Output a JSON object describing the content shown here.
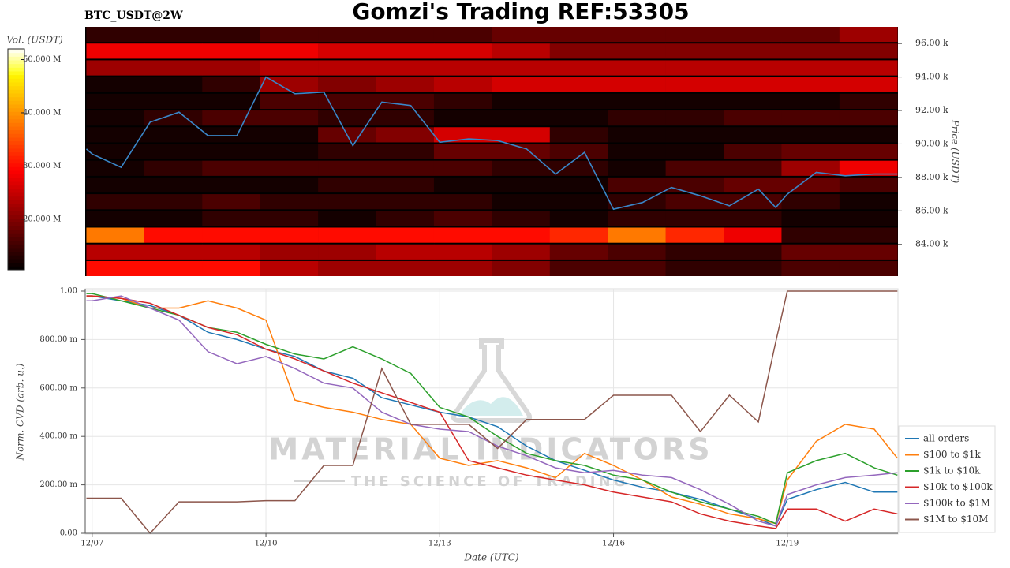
{
  "chart_data": [
    {
      "type": "heatmap",
      "title": "Gomzi's Trading REF:53305",
      "subtitle": "BTC_USDT@2W",
      "ylabel": "Price (USDT)",
      "xlim": [
        6.88,
        20.91
      ],
      "ylim": [
        82100,
        97000
      ],
      "yticks": [
        {
          "value": 84000,
          "label": "84.00 k"
        },
        {
          "value": 86000,
          "label": "86.00 k"
        },
        {
          "value": 88000,
          "label": "88.00 k"
        },
        {
          "value": 90000,
          "label": "90.00 k"
        },
        {
          "value": 92000,
          "label": "92.00 k"
        },
        {
          "value": 94000,
          "label": "94.00 k"
        },
        {
          "value": 96000,
          "label": "96.00 k"
        }
      ],
      "xbins": [
        6.9,
        7.9,
        8.9,
        9.9,
        10.9,
        11.9,
        12.9,
        13.9,
        14.9,
        15.9,
        16.9,
        17.9,
        18.9,
        19.9,
        20.9
      ],
      "ybins": [
        82000,
        83000,
        84000,
        85000,
        86000,
        87000,
        88000,
        89000,
        90000,
        91000,
        92000,
        93000,
        94000,
        95000,
        96000,
        97000
      ],
      "z": [
        [
          30000000,
          30000000,
          30000000,
          24000000,
          22000000,
          22000000,
          22000000,
          20000000,
          16000000,
          16000000,
          14000000,
          14000000,
          16000000,
          16000000
        ],
        [
          24000000,
          24000000,
          24000000,
          22000000,
          22000000,
          24000000,
          24000000,
          22000000,
          18000000,
          16000000,
          14000000,
          14000000,
          18000000,
          18000000
        ],
        [
          38000000,
          30000000,
          30000000,
          30000000,
          30000000,
          30000000,
          30000000,
          30000000,
          32000000,
          38000000,
          32000000,
          28000000,
          14000000,
          14000000
        ],
        [
          12000000,
          12000000,
          14000000,
          14000000,
          12000000,
          14000000,
          16000000,
          14000000,
          12000000,
          14000000,
          14000000,
          14000000,
          12000000,
          12000000
        ],
        [
          14000000,
          14000000,
          16000000,
          14000000,
          14000000,
          14000000,
          14000000,
          12000000,
          12000000,
          14000000,
          16000000,
          16000000,
          14000000,
          12000000
        ],
        [
          12000000,
          12000000,
          12000000,
          12000000,
          14000000,
          14000000,
          12000000,
          12000000,
          12000000,
          16000000,
          16000000,
          18000000,
          18000000,
          16000000
        ],
        [
          12000000,
          14000000,
          16000000,
          16000000,
          16000000,
          16000000,
          16000000,
          14000000,
          14000000,
          12000000,
          16000000,
          16000000,
          22000000,
          28000000
        ],
        [
          12000000,
          12000000,
          12000000,
          12000000,
          14000000,
          14000000,
          18000000,
          18000000,
          16000000,
          12000000,
          12000000,
          16000000,
          18000000,
          18000000
        ],
        [
          12000000,
          12000000,
          12000000,
          12000000,
          18000000,
          20000000,
          26000000,
          26000000,
          14000000,
          12000000,
          12000000,
          12000000,
          12000000,
          12000000
        ],
        [
          12000000,
          14000000,
          16000000,
          16000000,
          14000000,
          14000000,
          12000000,
          12000000,
          12000000,
          14000000,
          14000000,
          16000000,
          16000000,
          16000000
        ],
        [
          12000000,
          12000000,
          12000000,
          16000000,
          16000000,
          16000000,
          14000000,
          12000000,
          12000000,
          12000000,
          12000000,
          12000000,
          12000000,
          14000000
        ],
        [
          12000000,
          12000000,
          14000000,
          22000000,
          20000000,
          22000000,
          24000000,
          26000000,
          26000000,
          26000000,
          26000000,
          26000000,
          26000000,
          26000000
        ],
        [
          22000000,
          22000000,
          22000000,
          24000000,
          24000000,
          24000000,
          24000000,
          24000000,
          24000000,
          24000000,
          24000000,
          24000000,
          24000000,
          24000000
        ],
        [
          28000000,
          28000000,
          28000000,
          28000000,
          26000000,
          26000000,
          26000000,
          24000000,
          20000000,
          20000000,
          20000000,
          20000000,
          20000000,
          20000000
        ],
        [
          14000000,
          14000000,
          14000000,
          16000000,
          16000000,
          16000000,
          16000000,
          18000000,
          18000000,
          18000000,
          18000000,
          18000000,
          18000000,
          22000000
        ]
      ],
      "colorbar": {
        "label": "Vol. (USDT)",
        "lim": [
          10500000,
          52000000
        ],
        "ticks": [
          {
            "value": 20000000,
            "label": "20.000 M"
          },
          {
            "value": 30000000,
            "label": "30.000 M"
          },
          {
            "value": 40000000,
            "label": "40.000 M"
          },
          {
            "value": 50000000,
            "label": "50.000 M"
          }
        ]
      },
      "x": [
        6.9,
        7,
        7.5,
        8,
        8.5,
        9,
        9.5,
        10,
        10.5,
        11,
        11.5,
        12,
        12.5,
        13,
        13.5,
        14,
        14.5,
        15,
        15.5,
        16,
        16.5,
        17,
        17.5,
        18,
        18.5,
        18.8,
        19,
        19.5,
        20,
        20.5,
        20.9
      ],
      "series": [
        {
          "color": "#3a86c8",
          "values": [
            89700,
            89400,
            88600,
            91300,
            91900,
            90500,
            90500,
            94000,
            93000,
            93100,
            89900,
            92500,
            92300,
            90100,
            90300,
            90200,
            89700,
            88200,
            89500,
            86100,
            86500,
            87400,
            86900,
            86300,
            87300,
            86200,
            87000,
            88300,
            88100,
            88200,
            88200
          ]
        }
      ]
    },
    {
      "type": "line",
      "xlabel": "Date (UTC)",
      "ylabel": "Norm. CVD (arb. u.)",
      "annotations": [
        "MATERIAL INDICATORS",
        "THE SCIENCE OF TRADING"
      ],
      "xlim": [
        6.88,
        20.91
      ],
      "ylim": [
        0,
        1
      ],
      "xticks": [
        {
          "value": 7,
          "label": "12/07"
        },
        {
          "value": 10,
          "label": "12/10"
        },
        {
          "value": 13,
          "label": "12/13"
        },
        {
          "value": 16,
          "label": "12/16"
        },
        {
          "value": 19,
          "label": "12/19"
        }
      ],
      "yticks": [
        {
          "value": 0,
          "label": "0.00"
        },
        {
          "value": 0.2,
          "label": "200.00 m"
        },
        {
          "value": 0.4,
          "label": "400.00 m"
        },
        {
          "value": 0.6,
          "label": "600.00 m"
        },
        {
          "value": 0.8,
          "label": "800.00 m"
        },
        {
          "value": 1,
          "label": "1.00"
        }
      ],
      "grid": true,
      "legend": "right",
      "x": [
        6.9,
        7,
        7.5,
        8,
        8.5,
        9,
        9.5,
        10,
        10.5,
        11,
        11.5,
        12,
        12.5,
        13,
        13.5,
        14,
        14.5,
        15,
        15.5,
        16,
        16.5,
        17,
        17.5,
        18,
        18.5,
        18.8,
        19,
        19.5,
        20,
        20.5,
        20.9
      ],
      "series": [
        {
          "name": "all orders",
          "color": "#1f77b4",
          "values": [
            0.98,
            0.98,
            0.96,
            0.94,
            0.9,
            0.83,
            0.8,
            0.76,
            0.73,
            0.67,
            0.64,
            0.56,
            0.53,
            0.5,
            0.48,
            0.44,
            0.36,
            0.3,
            0.26,
            0.22,
            0.19,
            0.17,
            0.14,
            0.1,
            0.06,
            0.03,
            0.14,
            0.18,
            0.21,
            0.17,
            0.17
          ]
        },
        {
          "name": "$100 to $1k",
          "color": "#ff7f0e",
          "values": [
            0.98,
            0.98,
            0.97,
            0.93,
            0.93,
            0.96,
            0.93,
            0.88,
            0.55,
            0.52,
            0.5,
            0.47,
            0.45,
            0.31,
            0.28,
            0.3,
            0.27,
            0.23,
            0.33,
            0.28,
            0.22,
            0.15,
            0.12,
            0.08,
            0.06,
            0.04,
            0.22,
            0.38,
            0.45,
            0.43,
            0.31
          ]
        },
        {
          "name": "$1k to $10k",
          "color": "#2ca02c",
          "values": [
            0.99,
            0.99,
            0.96,
            0.93,
            0.9,
            0.85,
            0.83,
            0.78,
            0.74,
            0.72,
            0.77,
            0.72,
            0.66,
            0.52,
            0.48,
            0.4,
            0.33,
            0.3,
            0.28,
            0.24,
            0.22,
            0.17,
            0.13,
            0.1,
            0.07,
            0.04,
            0.25,
            0.3,
            0.33,
            0.27,
            0.24
          ]
        },
        {
          "name": "$10k to $100k",
          "color": "#d62728",
          "values": [
            0.98,
            0.98,
            0.97,
            0.95,
            0.9,
            0.85,
            0.82,
            0.76,
            0.72,
            0.67,
            0.62,
            0.58,
            0.54,
            0.5,
            0.3,
            0.27,
            0.24,
            0.22,
            0.2,
            0.17,
            0.15,
            0.13,
            0.08,
            0.05,
            0.03,
            0.02,
            0.1,
            0.1,
            0.05,
            0.1,
            0.08
          ]
        },
        {
          "name": "$100k to $1M",
          "color": "#9467bd",
          "values": [
            0.96,
            0.96,
            0.98,
            0.93,
            0.88,
            0.75,
            0.7,
            0.73,
            0.68,
            0.62,
            0.6,
            0.5,
            0.45,
            0.43,
            0.42,
            0.36,
            0.32,
            0.27,
            0.25,
            0.26,
            0.24,
            0.23,
            0.18,
            0.12,
            0.05,
            0.03,
            0.16,
            0.2,
            0.23,
            0.24,
            0.25
          ]
        },
        {
          "name": "$1M to $10M",
          "color": "#8c564b",
          "values": [
            0.145,
            0.145,
            0.145,
            0,
            0.13,
            0.13,
            0.13,
            0.135,
            0.135,
            0.28,
            0.28,
            0.68,
            0.45,
            0.45,
            0.45,
            0.35,
            0.47,
            0.47,
            0.47,
            0.57,
            0.57,
            0.57,
            0.42,
            0.57,
            0.46,
            0.79,
            1.0,
            1.0,
            1.0,
            1.0,
            1.0
          ]
        }
      ]
    }
  ]
}
